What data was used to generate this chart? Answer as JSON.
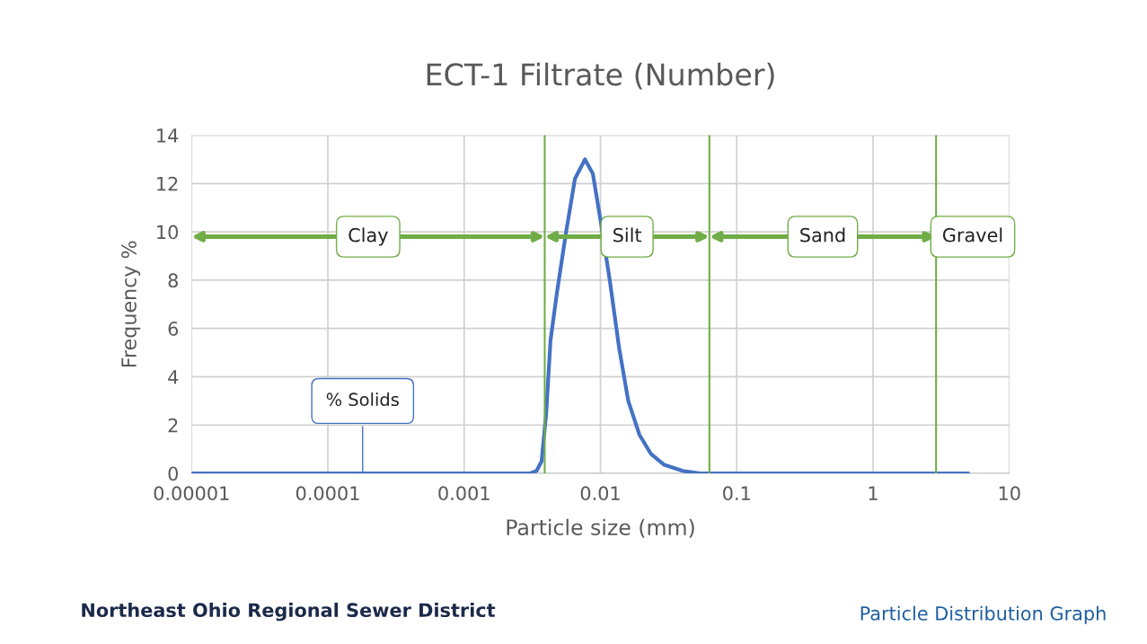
{
  "chart_data": {
    "type": "line",
    "title": "ECT-1 Filtrate (Number)",
    "xlabel": "Particle size (mm)",
    "ylabel": "Frequency %",
    "log": "x",
    "grid": true,
    "xlim": [
      1e-05,
      10
    ],
    "xticks": [
      {
        "value": 1e-05,
        "label": "0.00001"
      },
      {
        "value": 0.0001,
        "label": "0.0001"
      },
      {
        "value": 0.001,
        "label": "0.001"
      },
      {
        "value": 0.01,
        "label": "0.01"
      },
      {
        "value": 0.1,
        "label": "0.1"
      },
      1,
      10
    ],
    "ylim": [
      0,
      14
    ],
    "yticks": [
      0,
      2,
      4,
      6,
      8,
      10,
      12,
      14
    ],
    "series": [
      {
        "color": "#4472c4",
        "x": [
          1e-05,
          0.00305,
          0.0034,
          0.0037,
          0.004,
          0.0043,
          0.0048,
          0.0056,
          0.0065,
          0.0077,
          0.0088,
          0.01,
          0.0117,
          0.0137,
          0.016,
          0.0193,
          0.0235,
          0.0294,
          0.0401,
          0.054,
          5
        ],
        "values": [
          0,
          0,
          0.1,
          0.5,
          2.5,
          5.5,
          7.5,
          10,
          12.2,
          13,
          12.4,
          10.5,
          8,
          5.2,
          3,
          1.6,
          0.8,
          0.35,
          0.1,
          0,
          0
        ]
      }
    ],
    "ref_lines": [
      {
        "axis": "x",
        "value": 0.0039,
        "color": "#70ad47"
      },
      {
        "axis": "x",
        "value": 0.063,
        "color": "#70ad47"
      },
      {
        "axis": "x",
        "value": 2.9,
        "color": "#70ad47"
      }
    ],
    "annotations": [
      "Clay",
      "Silt",
      "Sand",
      "Gravel",
      {
        "text": "% Solids",
        "x": 0.00018,
        "y": 0
      },
      "Northeast Ohio Regional Sewer District",
      "Particle Distribution Graph"
    ]
  }
}
